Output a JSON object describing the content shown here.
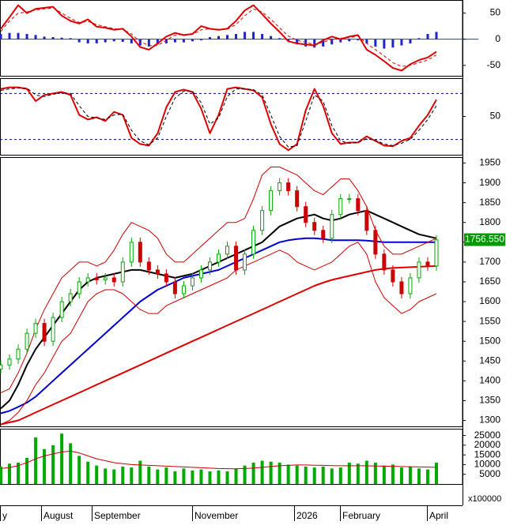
{
  "chart_data": [
    {
      "type": "line",
      "panel": "MACD",
      "y_ticks": [
        50,
        0,
        -50
      ],
      "ylim": [
        -70,
        75
      ],
      "x": [
        0,
        5,
        10,
        15,
        20,
        25,
        30,
        35,
        40,
        45,
        50,
        55,
        60,
        65,
        70,
        75,
        80,
        85,
        90,
        95,
        100,
        105,
        110,
        115,
        120,
        125,
        130,
        135,
        140,
        145,
        150,
        155,
        160,
        165,
        170,
        175,
        180,
        185,
        190,
        195,
        200,
        205,
        210,
        215,
        220,
        225,
        230,
        235,
        240,
        245,
        250
      ],
      "series": [
        {
          "color": "#dd0000",
          "values": [
            20,
            42,
            65,
            50,
            58,
            60,
            62,
            45,
            35,
            30,
            38,
            24,
            22,
            18,
            20,
            5,
            -15,
            -20,
            -8,
            5,
            12,
            8,
            10,
            25,
            20,
            18,
            20,
            35,
            55,
            65,
            48,
            30,
            14,
            -4,
            -8,
            -10,
            -12,
            -2,
            5,
            0,
            5,
            8,
            -20,
            -30,
            -42,
            -55,
            -60,
            -48,
            -40,
            -35,
            -24
          ]
        },
        {
          "color": "#dd0000",
          "dashed": true,
          "values": [
            15,
            35,
            50,
            52,
            56,
            58,
            60,
            50,
            40,
            32,
            34,
            28,
            24,
            20,
            19,
            10,
            -5,
            -12,
            -12,
            -2,
            8,
            9,
            9,
            18,
            20,
            19,
            19,
            28,
            45,
            58,
            52,
            38,
            22,
            6,
            -2,
            -6,
            -10,
            -6,
            0,
            2,
            3,
            6,
            -8,
            -20,
            -32,
            -45,
            -52,
            -50,
            -45,
            -40,
            -30
          ]
        }
      ],
      "histogram": [
        10,
        12,
        12,
        10,
        8,
        5,
        4,
        3,
        2,
        -6,
        -8,
        -8,
        -6,
        -4,
        -5,
        -8,
        -12,
        -14,
        -10,
        -8,
        -6,
        -6,
        -4,
        -2,
        4,
        6,
        8,
        10,
        14,
        14,
        10,
        6,
        2,
        -4,
        -10,
        -14,
        -16,
        -14,
        -10,
        -6,
        -4,
        -2,
        -8,
        -14,
        -18,
        -16,
        -12,
        -8,
        2,
        10,
        14
      ]
    },
    {
      "type": "line",
      "panel": "Stochastic",
      "y_ticks": [
        50
      ],
      "ylim": [
        0,
        100
      ],
      "reference_lines": [
        80,
        20
      ],
      "x": [
        0,
        5,
        10,
        15,
        20,
        25,
        30,
        35,
        40,
        45,
        50,
        55,
        60,
        65,
        70,
        75,
        80,
        85,
        90,
        95,
        100,
        105,
        110,
        115,
        120,
        125,
        130,
        135,
        140,
        145,
        150,
        155,
        160,
        165,
        170,
        175,
        180,
        185,
        190,
        195,
        200,
        205,
        210,
        215,
        220,
        225,
        230,
        235,
        240,
        245,
        250
      ],
      "series": [
        {
          "color": "#dd0000",
          "values": [
            86,
            88,
            88,
            86,
            70,
            78,
            80,
            82,
            78,
            52,
            46,
            49,
            44,
            56,
            52,
            22,
            14,
            12,
            28,
            62,
            82,
            85,
            82,
            60,
            28,
            52,
            86,
            88,
            86,
            84,
            75,
            40,
            14,
            6,
            14,
            58,
            86,
            64,
            28,
            14,
            16,
            16,
            24,
            18,
            12,
            11,
            18,
            22,
            38,
            52,
            72
          ]
        },
        {
          "color": "#000000",
          "dashed": true,
          "values": [
            84,
            86,
            87,
            87,
            78,
            76,
            79,
            81,
            80,
            64,
            50,
            48,
            46,
            52,
            53,
            32,
            18,
            13,
            22,
            50,
            74,
            83,
            83,
            68,
            40,
            48,
            76,
            86,
            86,
            85,
            78,
            52,
            24,
            10,
            12,
            44,
            78,
            70,
            38,
            18,
            15,
            16,
            21,
            19,
            14,
            12,
            15,
            20,
            32,
            46,
            64
          ]
        }
      ]
    },
    {
      "type": "line",
      "panel": "Price",
      "y_ticks": [
        1950,
        1900,
        1850,
        1800,
        1750,
        1700,
        1650,
        1600,
        1550,
        1500,
        1450,
        1400,
        1350,
        1300
      ],
      "ylim": [
        1285,
        1965
      ],
      "last_price": "1756.550",
      "x": [
        0,
        5,
        10,
        15,
        20,
        25,
        30,
        35,
        40,
        45,
        50,
        55,
        60,
        65,
        70,
        75,
        80,
        85,
        90,
        95,
        100,
        105,
        110,
        115,
        120,
        125,
        130,
        135,
        140,
        145,
        150,
        155,
        160,
        165,
        170,
        175,
        180,
        185,
        190,
        195,
        200,
        205,
        210,
        215,
        220,
        225,
        230,
        235,
        240,
        245,
        250
      ],
      "close": [
        1440,
        1455,
        1480,
        1520,
        1545,
        1500,
        1560,
        1600,
        1620,
        1650,
        1660,
        1655,
        1660,
        1650,
        1700,
        1750,
        1700,
        1680,
        1670,
        1650,
        1620,
        1640,
        1660,
        1680,
        1700,
        1720,
        1740,
        1680,
        1720,
        1780,
        1830,
        1880,
        1900,
        1880,
        1840,
        1800,
        1780,
        1760,
        1820,
        1860,
        1860,
        1830,
        1780,
        1720,
        1680,
        1650,
        1620,
        1660,
        1700,
        1690,
        1756
      ],
      "series": [
        {
          "name": "",
          "color": "#000000",
          "values": [
            1330,
            1350,
            1390,
            1440,
            1480,
            1510,
            1540,
            1570,
            1600,
            1630,
            1650,
            1660,
            1665,
            1670,
            1675,
            1680,
            1680,
            1675,
            1670,
            1665,
            1660,
            1665,
            1670,
            1680,
            1690,
            1700,
            1710,
            1720,
            1730,
            1740,
            1750,
            1770,
            1790,
            1800,
            1810,
            1815,
            1820,
            1810,
            1805,
            1810,
            1820,
            1825,
            1830,
            1820,
            1810,
            1800,
            1790,
            1780,
            1770,
            1765,
            1760
          ]
        },
        {
          "name": "",
          "color": "#0000cc",
          "values": [
            1318,
            1324,
            1334,
            1345,
            1360,
            1380,
            1400,
            1420,
            1440,
            1460,
            1480,
            1500,
            1520,
            1540,
            1560,
            1580,
            1600,
            1615,
            1630,
            1640,
            1650,
            1660,
            1665,
            1670,
            1675,
            1680,
            1690,
            1700,
            1710,
            1720,
            1730,
            1740,
            1750,
            1755,
            1758,
            1760,
            1760,
            1758,
            1755,
            1755,
            1755,
            1755,
            1754,
            1752,
            1750,
            1750,
            1750,
            1750,
            1750,
            1750,
            1750
          ]
        },
        {
          "name": "",
          "color": "#dd0000",
          "values": [
            1290,
            1295,
            1300,
            1310,
            1320,
            1330,
            1340,
            1350,
            1360,
            1370,
            1380,
            1390,
            1400,
            1410,
            1420,
            1430,
            1440,
            1450,
            1460,
            1470,
            1480,
            1490,
            1500,
            1510,
            1520,
            1530,
            1540,
            1550,
            1560,
            1570,
            1580,
            1590,
            1600,
            1610,
            1620,
            1630,
            1640,
            1648,
            1655,
            1660,
            1665,
            1670,
            1675,
            1680,
            1683,
            1685,
            1686,
            1687,
            1688,
            1689,
            1690
          ]
        },
        {
          "name": "",
          "color": "#cc0000",
          "thin": true,
          "values": [
            1370,
            1380,
            1420,
            1470,
            1530,
            1580,
            1620,
            1660,
            1680,
            1700,
            1700,
            1690,
            1700,
            1730,
            1770,
            1800,
            1790,
            1780,
            1760,
            1720,
            1700,
            1700,
            1720,
            1740,
            1760,
            1780,
            1800,
            1800,
            1810,
            1860,
            1920,
            1940,
            1940,
            1930,
            1920,
            1900,
            1880,
            1870,
            1890,
            1910,
            1910,
            1880,
            1840,
            1780,
            1740,
            1720,
            1720,
            1730,
            1740,
            1750,
            1760
          ]
        },
        {
          "name": "",
          "color": "#cc0000",
          "thin": true,
          "values": [
            1290,
            1300,
            1320,
            1350,
            1390,
            1420,
            1460,
            1500,
            1520,
            1560,
            1600,
            1620,
            1630,
            1630,
            1620,
            1600,
            1580,
            1570,
            1570,
            1590,
            1600,
            1610,
            1620,
            1630,
            1640,
            1650,
            1660,
            1680,
            1690,
            1700,
            1710,
            1720,
            1730,
            1720,
            1700,
            1690,
            1680,
            1690,
            1700,
            1720,
            1740,
            1750,
            1720,
            1650,
            1610,
            1590,
            1570,
            1580,
            1600,
            1610,
            1620
          ]
        }
      ]
    },
    {
      "type": "bar",
      "panel": "Volume",
      "y_ticks": [
        25000,
        20000,
        15000,
        10000,
        5000
      ],
      "ylim": [
        0,
        28500
      ],
      "unit_label": "x100000",
      "x_labels": [
        "y",
        "August",
        "September",
        "November",
        "2026",
        "February",
        "April"
      ],
      "x": [
        0,
        5,
        10,
        15,
        20,
        25,
        30,
        35,
        40,
        45,
        50,
        55,
        60,
        65,
        70,
        75,
        80,
        85,
        90,
        95,
        100,
        105,
        110,
        115,
        120,
        125,
        130,
        135,
        140,
        145,
        150,
        155,
        160,
        165,
        170,
        175,
        180,
        185,
        190,
        195,
        200,
        205,
        210,
        215,
        220,
        225,
        230,
        235,
        240,
        245,
        250
      ],
      "values": [
        9000,
        10500,
        11000,
        13500,
        24000,
        18000,
        20000,
        26000,
        21000,
        14500,
        11500,
        9500,
        8000,
        7500,
        9000,
        8500,
        12000,
        9000,
        7500,
        8500,
        6500,
        8000,
        7000,
        7500,
        6500,
        7000,
        6500,
        8000,
        9500,
        11000,
        12000,
        11500,
        11000,
        10000,
        9500,
        9000,
        8500,
        9000,
        8000,
        8500,
        11000,
        10500,
        12000,
        11000,
        9500,
        10000,
        8500,
        9000,
        8000,
        7500,
        11000
      ],
      "ma": [
        8000,
        8500,
        9500,
        11000,
        13000,
        14500,
        15500,
        16500,
        17000,
        16000,
        14500,
        13000,
        12000,
        11000,
        10500,
        10000,
        9800,
        9600,
        9400,
        9200,
        9000,
        8800,
        8600,
        8400,
        8200,
        8000,
        7900,
        7800,
        8000,
        8200,
        8600,
        9000,
        9400,
        9600,
        9800,
        9800,
        9700,
        9600,
        9500,
        9400,
        9400,
        9400,
        9400,
        9300,
        9200,
        9100,
        9000,
        8900,
        8800,
        8700,
        8600
      ],
      "ma_color": "#cc0000",
      "bar_color": "#00aa00"
    }
  ]
}
